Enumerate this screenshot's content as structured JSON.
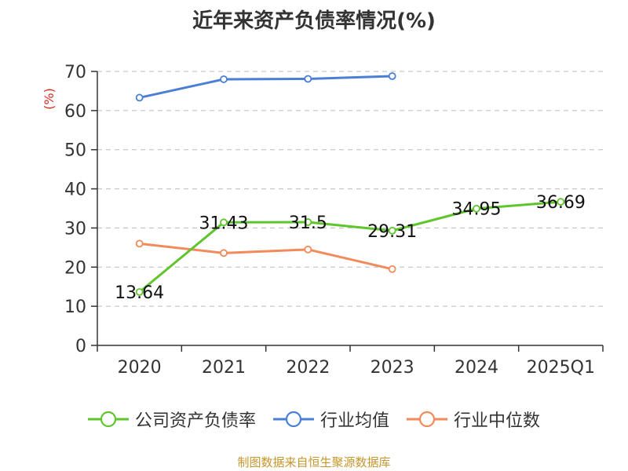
{
  "chart_data": {
    "type": "line",
    "title": "近年来资产负债率情况(%)",
    "ylabel": "(%)",
    "categories": [
      "2020",
      "2021",
      "2022",
      "2023",
      "2024",
      "2025Q1"
    ],
    "ylim": [
      0,
      70
    ],
    "yticks": [
      0,
      10,
      20,
      30,
      40,
      50,
      60,
      70
    ],
    "grid": true,
    "legend_position": "bottom",
    "series": [
      {
        "name": "公司资产负债率",
        "color": "#5ec52d",
        "values": [
          13.64,
          31.43,
          31.5,
          29.31,
          34.95,
          36.69
        ],
        "labels": [
          "13.64",
          "31.43",
          "31.5",
          "29.31",
          "34.95",
          "36.69"
        ]
      },
      {
        "name": "行业均值",
        "color": "#4a7fd6",
        "values": [
          63.3,
          68.0,
          68.1,
          68.8,
          null,
          null
        ]
      },
      {
        "name": "行业中位数",
        "color": "#f28a5b",
        "values": [
          26.0,
          23.6,
          24.5,
          19.5,
          null,
          null
        ]
      }
    ]
  },
  "source": "制图数据来自恒生聚源数据库",
  "colors": {
    "ylabel": "#d9281e",
    "axis": "#333333",
    "grid": "#bbbbbb"
  }
}
